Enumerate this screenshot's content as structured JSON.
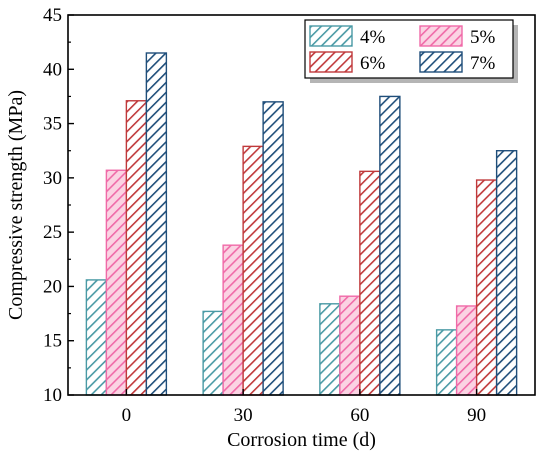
{
  "chart_data": {
    "type": "bar",
    "title": "",
    "xlabel": "Corrosion time (d)",
    "ylabel": "Compressive strength (MPa)",
    "categories": [
      "0",
      "30",
      "60",
      "90"
    ],
    "ylim": [
      10,
      45
    ],
    "yticks": [
      10,
      15,
      20,
      25,
      30,
      35,
      40,
      45
    ],
    "grid": false,
    "legend_position": "top-right",
    "series": [
      {
        "name": "4%",
        "values": [
          20.6,
          17.7,
          18.4,
          16.0
        ],
        "color": "#4a9aa5"
      },
      {
        "name": "5%",
        "values": [
          30.7,
          23.8,
          19.1,
          18.2
        ],
        "color": "#f06aa8"
      },
      {
        "name": "6%",
        "values": [
          37.1,
          32.9,
          30.6,
          29.8
        ],
        "color": "#c0393b"
      },
      {
        "name": "7%",
        "values": [
          41.5,
          37.0,
          37.5,
          32.5
        ],
        "color": "#1f4e7a"
      }
    ]
  }
}
